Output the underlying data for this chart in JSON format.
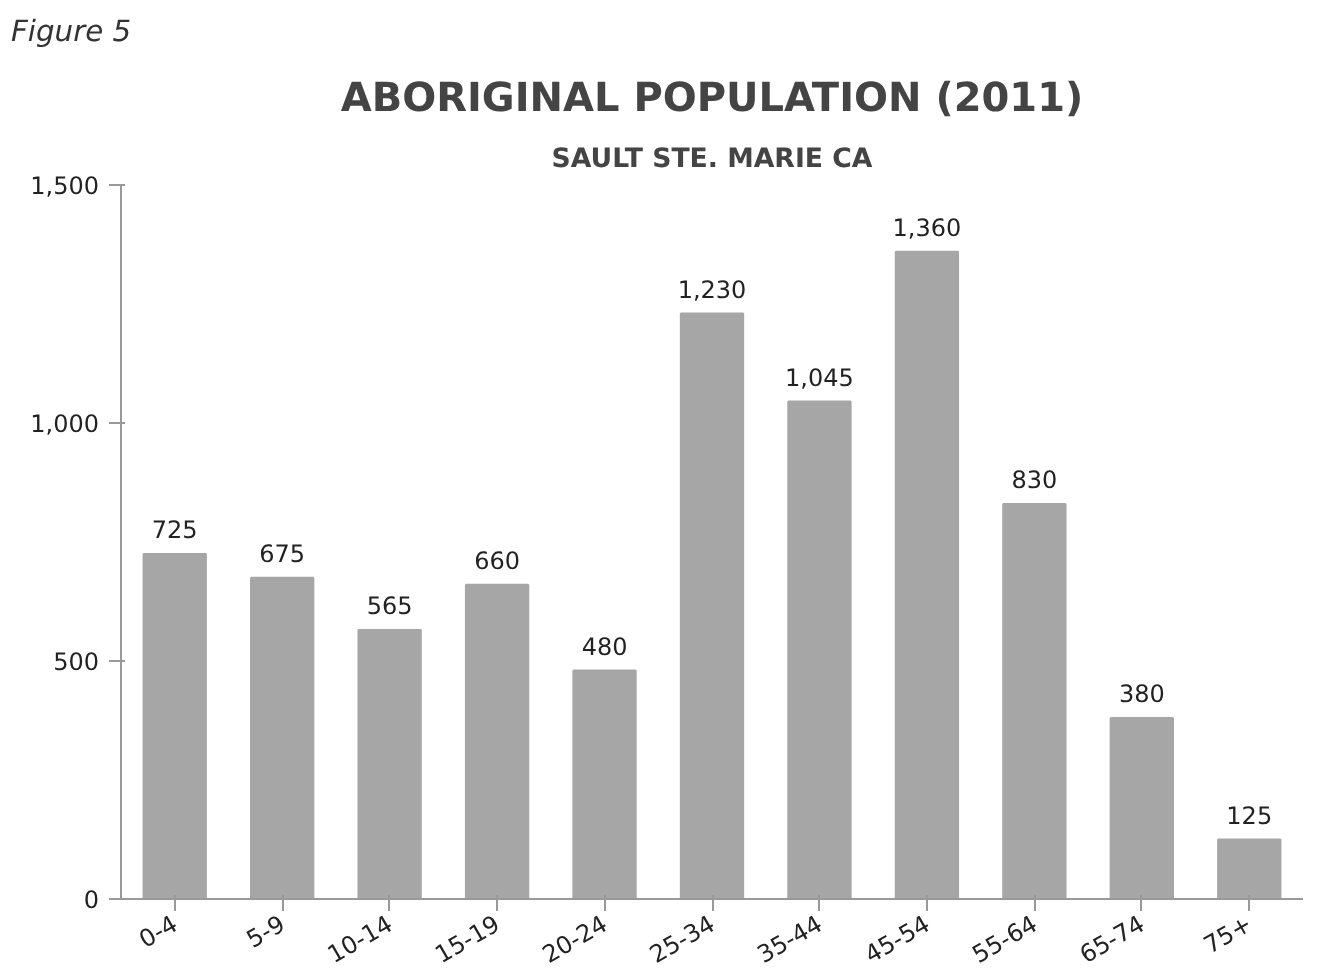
{
  "chart_data": {
    "type": "bar",
    "title": "ABORIGINAL POPULATION (2011)",
    "subtitle": "SAULT STE. MARIE CA",
    "annotations": [
      "Figure 5"
    ],
    "categories": [
      "0-4",
      "5-9",
      "10-14",
      "15-19",
      "20-24",
      "25-34",
      "35-44",
      "45-54",
      "55-64",
      "65-74",
      "75+"
    ],
    "values": [
      725,
      675,
      565,
      660,
      480,
      1230,
      1045,
      1360,
      830,
      380,
      125
    ],
    "value_labels": [
      "725",
      "675",
      "565",
      "660",
      "480",
      "1,230",
      "1,045",
      "1,360",
      "830",
      "380",
      "125"
    ],
    "color": "#a6a6a6",
    "ylim": [
      0,
      1500
    ],
    "yticks": [
      {
        "value": 0,
        "label": "0"
      },
      {
        "value": 500,
        "label": "500"
      },
      {
        "value": 1000,
        "label": "1,000"
      },
      {
        "value": 1500,
        "label": "1,500"
      }
    ],
    "grid": false
  }
}
